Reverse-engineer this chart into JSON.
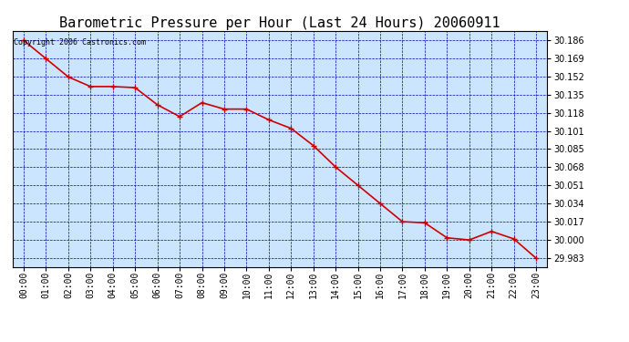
{
  "title": "Barometric Pressure per Hour (Last 24 Hours) 20060911",
  "copyright": "Copyright 2006 Castronics.com",
  "hours": [
    "00:00",
    "01:00",
    "02:00",
    "03:00",
    "04:00",
    "05:00",
    "06:00",
    "07:00",
    "08:00",
    "09:00",
    "10:00",
    "11:00",
    "12:00",
    "13:00",
    "14:00",
    "15:00",
    "16:00",
    "17:00",
    "18:00",
    "19:00",
    "20:00",
    "21:00",
    "22:00",
    "23:00"
  ],
  "values": [
    30.186,
    30.169,
    30.152,
    30.143,
    30.143,
    30.142,
    30.126,
    30.115,
    30.128,
    30.122,
    30.122,
    30.112,
    30.104,
    30.088,
    30.068,
    30.051,
    30.034,
    30.017,
    30.016,
    30.002,
    30.0,
    30.008,
    30.001,
    29.983
  ],
  "ylim_min": 29.975,
  "ylim_max": 30.195,
  "yticks": [
    30.186,
    30.169,
    30.152,
    30.135,
    30.118,
    30.101,
    30.085,
    30.068,
    30.051,
    30.034,
    30.017,
    30.0,
    29.983
  ],
  "line_color": "#cc0000",
  "marker_color": "#cc0000",
  "background_color": "#cce5ff",
  "fig_background_color": "#ffffff",
  "grid_color": "#0000bb",
  "title_color": "#000000",
  "border_color": "#000000",
  "title_fontsize": 11,
  "copyright_fontsize": 6,
  "tick_fontsize": 7,
  "marker": "+",
  "marker_size": 5,
  "line_width": 1.2
}
